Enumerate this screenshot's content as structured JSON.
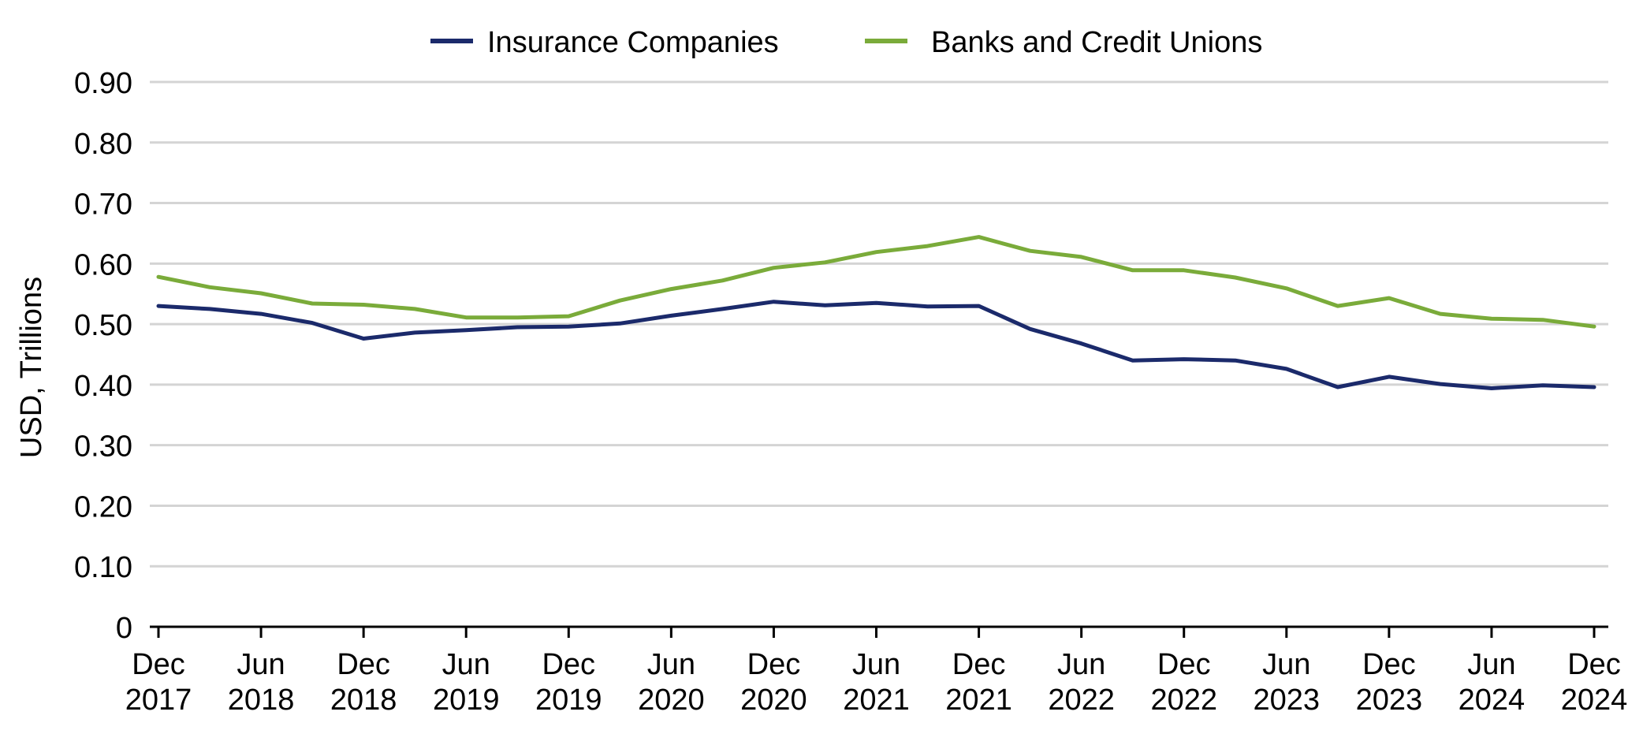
{
  "chart_data": {
    "type": "line",
    "title": "",
    "xlabel": "",
    "ylabel": "USD, Trillions",
    "ylim": [
      0,
      0.9
    ],
    "yticks": [
      "0",
      "0.10",
      "0.20",
      "0.30",
      "0.40",
      "0.50",
      "0.60",
      "0.70",
      "0.80",
      "0.90"
    ],
    "grid": true,
    "legend_position": "top-center",
    "x_tick_labels": [
      {
        "month": "Dec",
        "year": "2017"
      },
      {
        "month": "Jun",
        "year": "2018"
      },
      {
        "month": "Dec",
        "year": "2018"
      },
      {
        "month": "Jun",
        "year": "2019"
      },
      {
        "month": "Dec",
        "year": "2019"
      },
      {
        "month": "Jun",
        "year": "2020"
      },
      {
        "month": "Dec",
        "year": "2020"
      },
      {
        "month": "Jun",
        "year": "2021"
      },
      {
        "month": "Dec",
        "year": "2021"
      },
      {
        "month": "Jun",
        "year": "2022"
      },
      {
        "month": "Dec",
        "year": "2022"
      },
      {
        "month": "Jun",
        "year": "2023"
      },
      {
        "month": "Dec",
        "year": "2023"
      },
      {
        "month": "Jun",
        "year": "2024"
      },
      {
        "month": "Dec",
        "year": "2024"
      }
    ],
    "x": [
      "Dec 2017",
      "Mar 2018",
      "Jun 2018",
      "Sep 2018",
      "Dec 2018",
      "Mar 2019",
      "Jun 2019",
      "Sep 2019",
      "Dec 2019",
      "Mar 2020",
      "Jun 2020",
      "Sep 2020",
      "Dec 2020",
      "Mar 2021",
      "Jun 2021",
      "Sep 2021",
      "Dec 2021",
      "Mar 2022",
      "Jun 2022",
      "Sep 2022",
      "Dec 2022",
      "Mar 2023",
      "Jun 2023",
      "Sep 2023",
      "Dec 2023",
      "Mar 2024",
      "Jun 2024",
      "Sep 2024",
      "Dec 2024"
    ],
    "series": [
      {
        "name": "Insurance Companies",
        "color": "#1b2a6b",
        "values": [
          0.53,
          0.525,
          0.517,
          0.502,
          0.476,
          0.486,
          0.49,
          0.495,
          0.496,
          0.501,
          0.514,
          0.525,
          0.537,
          0.531,
          0.535,
          0.529,
          0.53,
          0.492,
          0.468,
          0.44,
          0.442,
          0.44,
          0.426,
          0.396,
          0.413,
          0.401,
          0.394,
          0.399,
          0.396
        ]
      },
      {
        "name": "Banks and Credit Unions",
        "color": "#7aab3a",
        "values": [
          0.578,
          0.561,
          0.551,
          0.534,
          0.532,
          0.525,
          0.511,
          0.511,
          0.513,
          0.539,
          0.558,
          0.572,
          0.593,
          0.602,
          0.619,
          0.629,
          0.644,
          0.621,
          0.611,
          0.589,
          0.589,
          0.577,
          0.559,
          0.53,
          0.543,
          0.517,
          0.509,
          0.507,
          0.496
        ]
      }
    ]
  }
}
